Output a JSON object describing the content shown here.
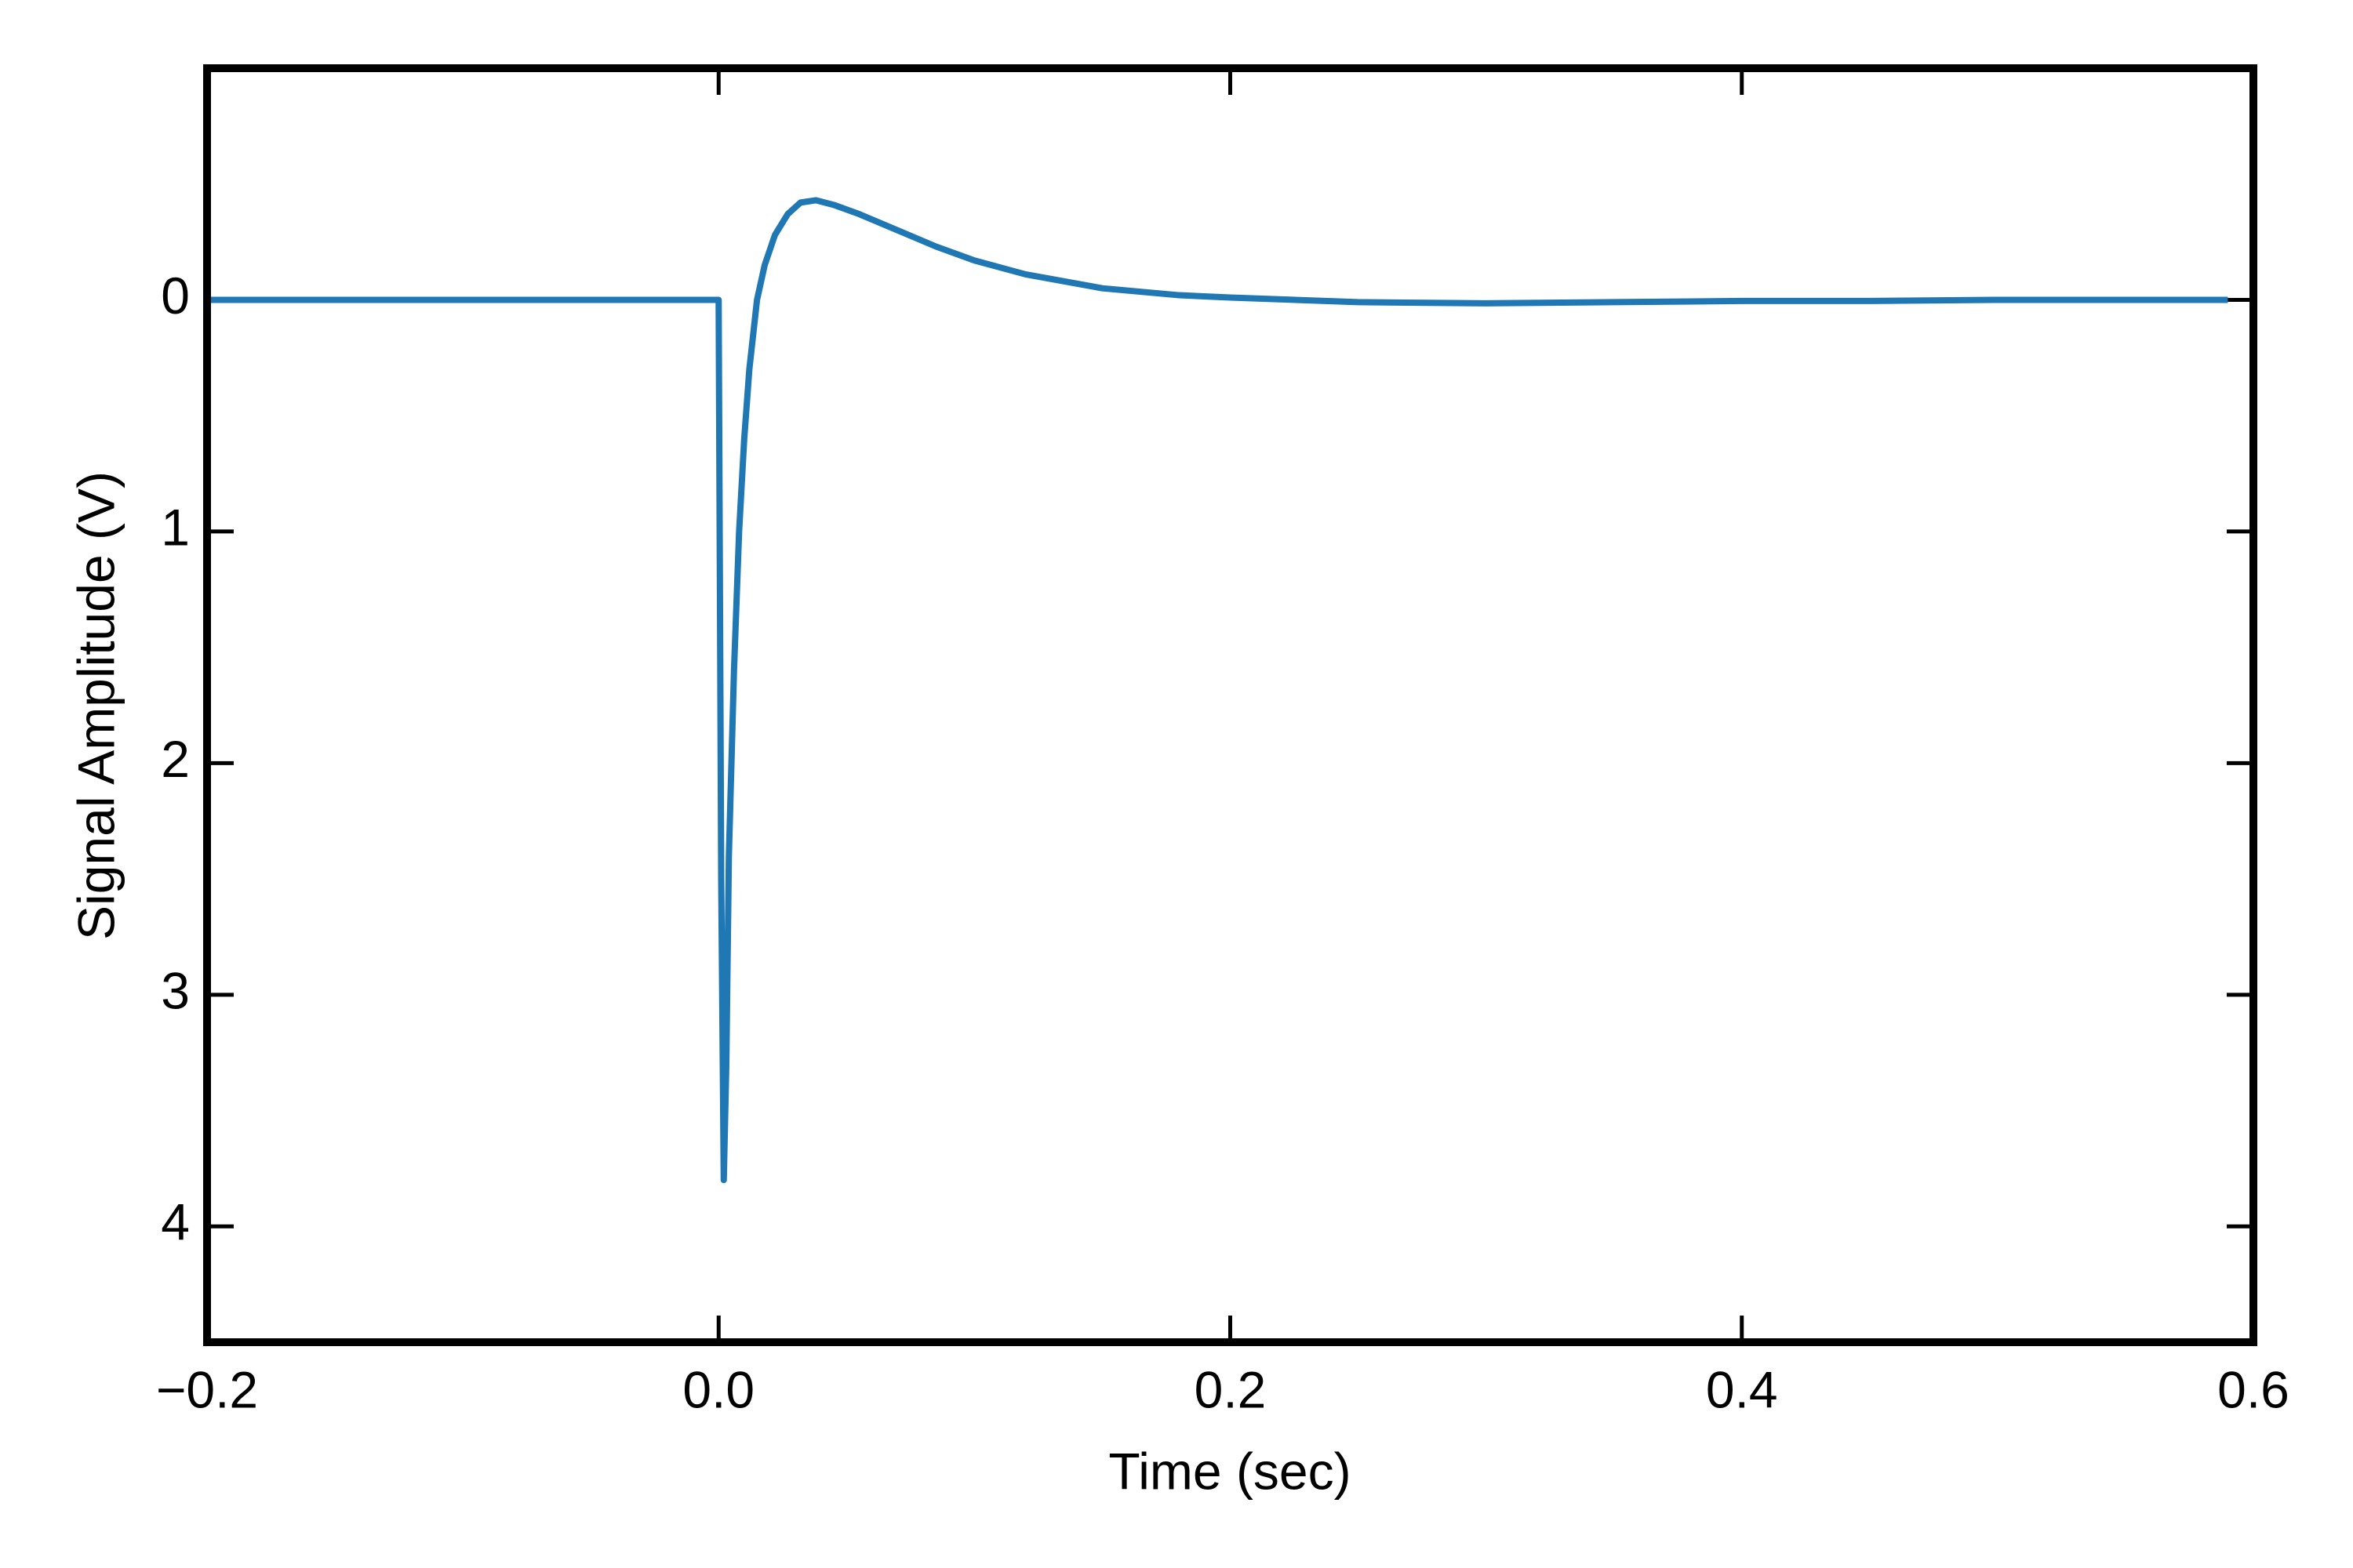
{
  "chart_data": {
    "type": "line",
    "xlabel": "Time (sec)",
    "ylabel": "Signal Amplitude (V)",
    "x": [
      -0.2,
      -0.15,
      -0.1,
      -0.05,
      -0.001,
      0,
      0.001,
      0.002,
      0.003,
      0.004,
      0.006,
      0.008,
      0.01,
      0.012,
      0.015,
      0.018,
      0.022,
      0.027,
      0.032,
      0.038,
      0.045,
      0.055,
      0.07,
      0.085,
      0.1,
      0.12,
      0.15,
      0.18,
      0.2,
      0.25,
      0.3,
      0.35,
      0.4,
      0.45,
      0.5,
      0.55,
      0.59
    ],
    "values": [
      0,
      0,
      0,
      0,
      0,
      0,
      2.5,
      3.8,
      3.3,
      2.4,
      1.6,
      1.0,
      0.6,
      0.3,
      0,
      -0.15,
      -0.28,
      -0.37,
      -0.42,
      -0.43,
      -0.41,
      -0.37,
      -0.3,
      -0.23,
      -0.17,
      -0.11,
      -0.05,
      -0.02,
      -0.01,
      0.01,
      0.015,
      0.01,
      0.005,
      0.005,
      0,
      0,
      0
    ],
    "color": "#1f77b4",
    "xlim": [
      -0.2,
      0.6
    ],
    "xticks": [
      {
        "value": -0.2,
        "label": "−0.2"
      },
      {
        "value": 0,
        "label": "0.0"
      },
      {
        "value": 0.2,
        "label": "0.2"
      },
      {
        "value": 0.4,
        "label": "0.4"
      },
      {
        "value": 0.6,
        "label": "0.6"
      }
    ],
    "ylim": [
      -1,
      4.5
    ],
    "y_inverted": true,
    "yticks": [
      0,
      1,
      2,
      3,
      4
    ],
    "grid": false
  }
}
